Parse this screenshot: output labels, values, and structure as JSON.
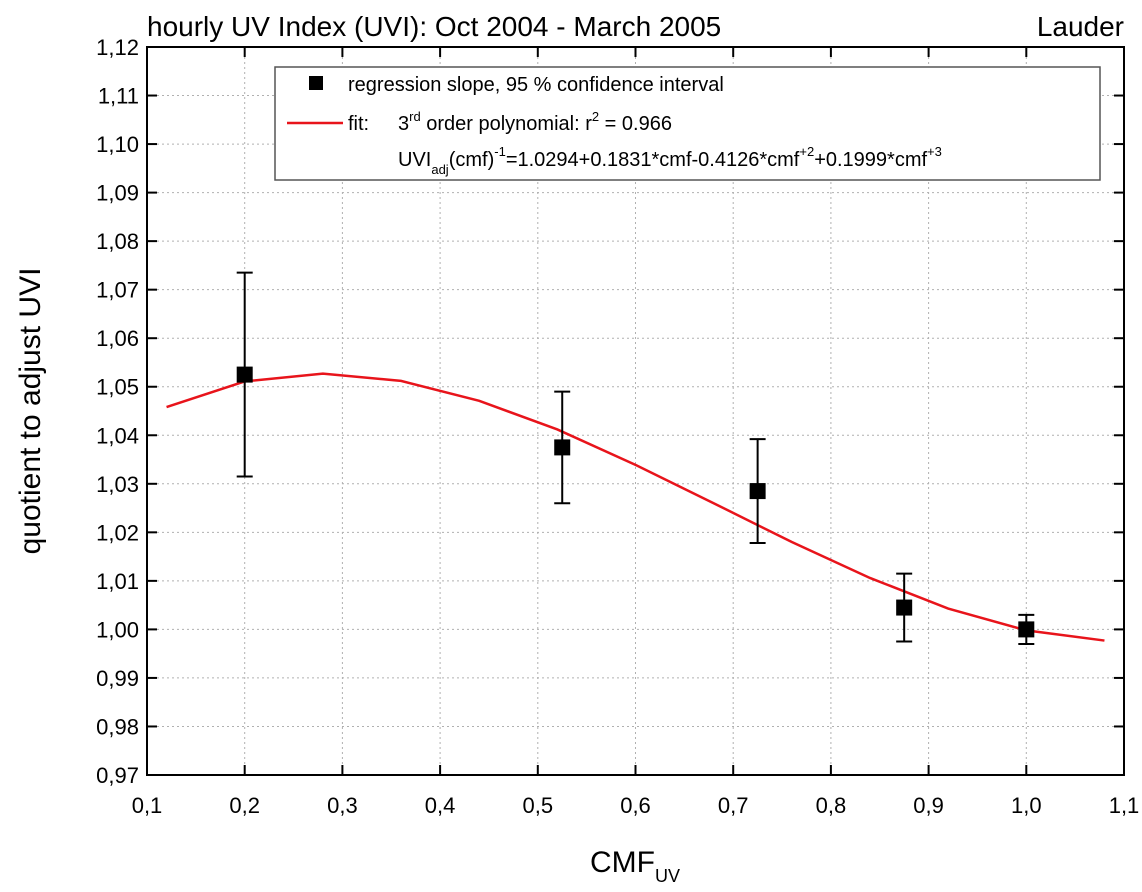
{
  "chart_data": {
    "type": "scatter",
    "title": "hourly UV Index (UVI): Oct 2004 - March 2005",
    "title_right": "Lauder",
    "ylabel": "quotient to adjust UVI",
    "xlabel": "CMF",
    "xlabel_sub": "UV",
    "xlim": [
      0.1,
      1.1
    ],
    "ylim": [
      0.97,
      1.12
    ],
    "grid": true,
    "xticks": [
      {
        "value": 0.1,
        "label": "0,1"
      },
      {
        "value": 0.2,
        "label": "0,2"
      },
      {
        "value": 0.3,
        "label": "0,3"
      },
      {
        "value": 0.4,
        "label": "0,4"
      },
      {
        "value": 0.5,
        "label": "0,5"
      },
      {
        "value": 0.6,
        "label": "0,6"
      },
      {
        "value": 0.7,
        "label": "0,7"
      },
      {
        "value": 0.8,
        "label": "0,8"
      },
      {
        "value": 0.9,
        "label": "0,9"
      },
      {
        "value": 1.0,
        "label": "1,0"
      },
      {
        "value": 1.1,
        "label": "1,1"
      }
    ],
    "yticks": [
      {
        "value": 0.97,
        "label": "0,97"
      },
      {
        "value": 0.98,
        "label": "0,98"
      },
      {
        "value": 0.99,
        "label": "0,99"
      },
      {
        "value": 1.0,
        "label": "1,00"
      },
      {
        "value": 1.01,
        "label": "1,01"
      },
      {
        "value": 1.02,
        "label": "1,02"
      },
      {
        "value": 1.03,
        "label": "1,03"
      },
      {
        "value": 1.04,
        "label": "1,04"
      },
      {
        "value": 1.05,
        "label": "1,05"
      },
      {
        "value": 1.06,
        "label": "1,06"
      },
      {
        "value": 1.07,
        "label": "1,07"
      },
      {
        "value": 1.08,
        "label": "1,08"
      },
      {
        "value": 1.09,
        "label": "1,09"
      },
      {
        "value": 1.1,
        "label": "1,10"
      },
      {
        "value": 1.11,
        "label": "1,11"
      },
      {
        "value": 1.12,
        "label": "1,12"
      }
    ],
    "series": [
      {
        "name": "regression slope, 95 % confidence interval",
        "color": "#000000",
        "x": [
          0.2,
          0.525,
          0.725,
          0.875,
          1.0
        ],
        "values": [
          1.0525,
          1.0375,
          1.0285,
          1.0045,
          1.0
        ],
        "errors": [
          0.021,
          0.0115,
          0.0107,
          0.007,
          0.003
        ]
      },
      {
        "name": "fit:",
        "color": "#e8141b",
        "x": [
          0.12,
          0.2,
          0.28,
          0.36,
          0.44,
          0.52,
          0.6,
          0.68,
          0.76,
          0.84,
          0.92,
          1.0,
          1.08
        ],
        "values": [
          1.0458,
          1.0511,
          1.0527,
          1.0512,
          1.0471,
          1.0412,
          1.0339,
          1.026,
          1.018,
          1.0106,
          1.0043,
          0.9998,
          0.9977
        ]
      }
    ],
    "fit_label": [
      "3",
      "rd",
      " order polynomial: r",
      "2",
      " = 0.966"
    ],
    "equation": [
      "UVI",
      "adj",
      "(cmf)",
      "-1",
      "=1.0294+0.1831*cmf-0.4126*cmf",
      "+2",
      "+0.1999*cmf",
      "+3"
    ]
  }
}
